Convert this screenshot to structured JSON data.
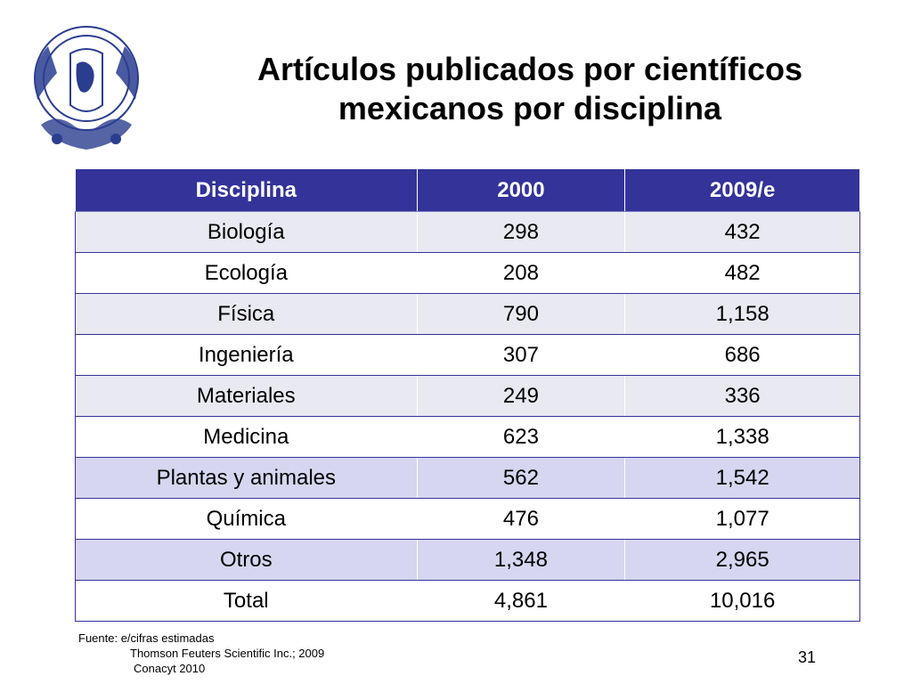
{
  "slide": {
    "title_line1": "Artículos publicados por científicos",
    "title_line2": "mexicanos por disciplina",
    "logo_icon": "unam-seal-icon",
    "table": {
      "headers": [
        "Disciplina",
        "2000",
        "2009/e"
      ],
      "rows": [
        [
          "Biología",
          "298",
          "432"
        ],
        [
          "Ecología",
          "208",
          "482"
        ],
        [
          "Física",
          "790",
          "1,158"
        ],
        [
          "Ingeniería",
          "307",
          "686"
        ],
        [
          "Materiales",
          "249",
          "336"
        ],
        [
          "Medicina",
          "623",
          "1,338"
        ],
        [
          "Plantas y animales",
          "562",
          "1,542"
        ],
        [
          "Química",
          "476",
          "1,077"
        ],
        [
          "Otros",
          "1,348",
          "2,965"
        ],
        [
          "Total",
          "4,861",
          "10,016"
        ]
      ]
    },
    "source": {
      "line1": "Fuente: e/cifras estimadas",
      "line2": "Thomson Feuters Scientific Inc.; 2009",
      "line3": "Conacyt 2010"
    },
    "page_number": "31"
  },
  "colors": {
    "header_bg": "#33339a",
    "row_light": "#e9e9f2",
    "row_blue": "#d6d6f0"
  }
}
